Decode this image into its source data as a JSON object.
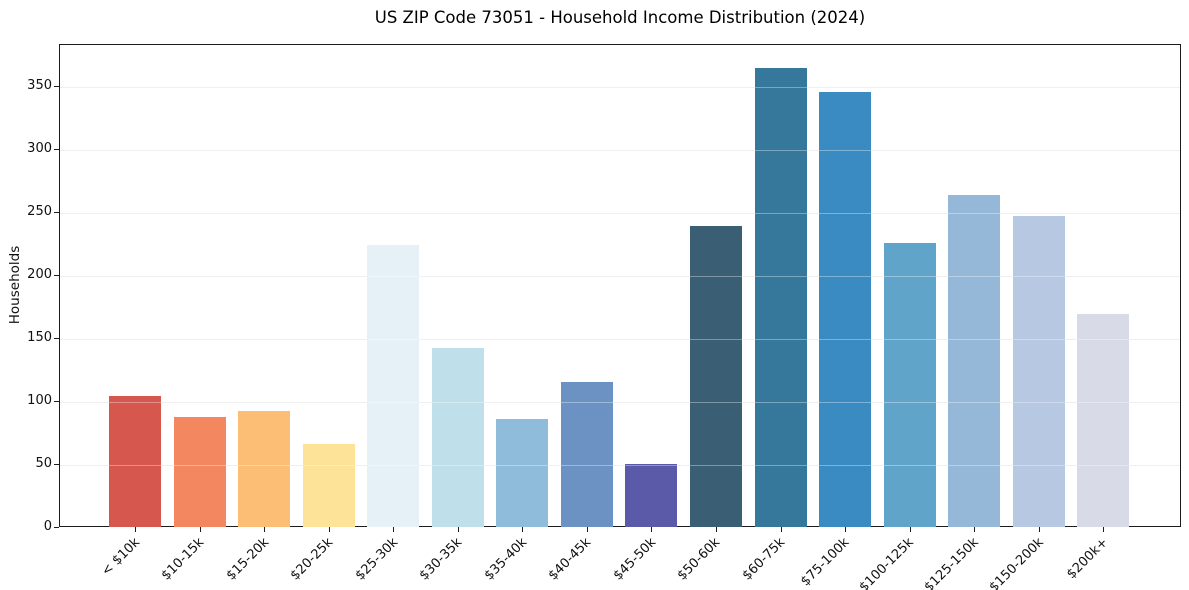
{
  "title": "US ZIP Code 73051 - Household Income Distribution (2024)",
  "chart_data": {
    "type": "bar",
    "title": "US ZIP Code 73051 - Household Income Distribution (2024)",
    "xlabel": "",
    "ylabel": "Households",
    "categories": [
      "< $10k",
      "$10-15k",
      "$15-20k",
      "$20-25k",
      "$25-30k",
      "$30-35k",
      "$35-40k",
      "$40-45k",
      "$45-50k",
      "$50-60k",
      "$60-75k",
      "$75-100k",
      "$100-125k",
      "$125-150k",
      "$150-200k",
      "$200k+"
    ],
    "values": [
      104,
      87,
      92,
      66,
      224,
      142,
      86,
      115,
      50,
      239,
      364,
      345,
      225,
      263,
      247,
      169
    ],
    "bar_colors": [
      "#d6574e",
      "#f3875f",
      "#fcbd74",
      "#fde397",
      "#e6f1f7",
      "#bfe0eb",
      "#90bcdb",
      "#6b92c3",
      "#5a5aa9",
      "#3a5f74",
      "#35789b",
      "#3a8bc2",
      "#60a5c9",
      "#96b8d8",
      "#b6c8e2",
      "#d8dae8"
    ],
    "ylim": [
      0,
      383
    ],
    "yticks": [
      0,
      50,
      100,
      150,
      200,
      250,
      300,
      350
    ],
    "grid": "horizontal",
    "legend": "none",
    "background": "#ffffff",
    "tick_label_rotation_deg": 45
  }
}
